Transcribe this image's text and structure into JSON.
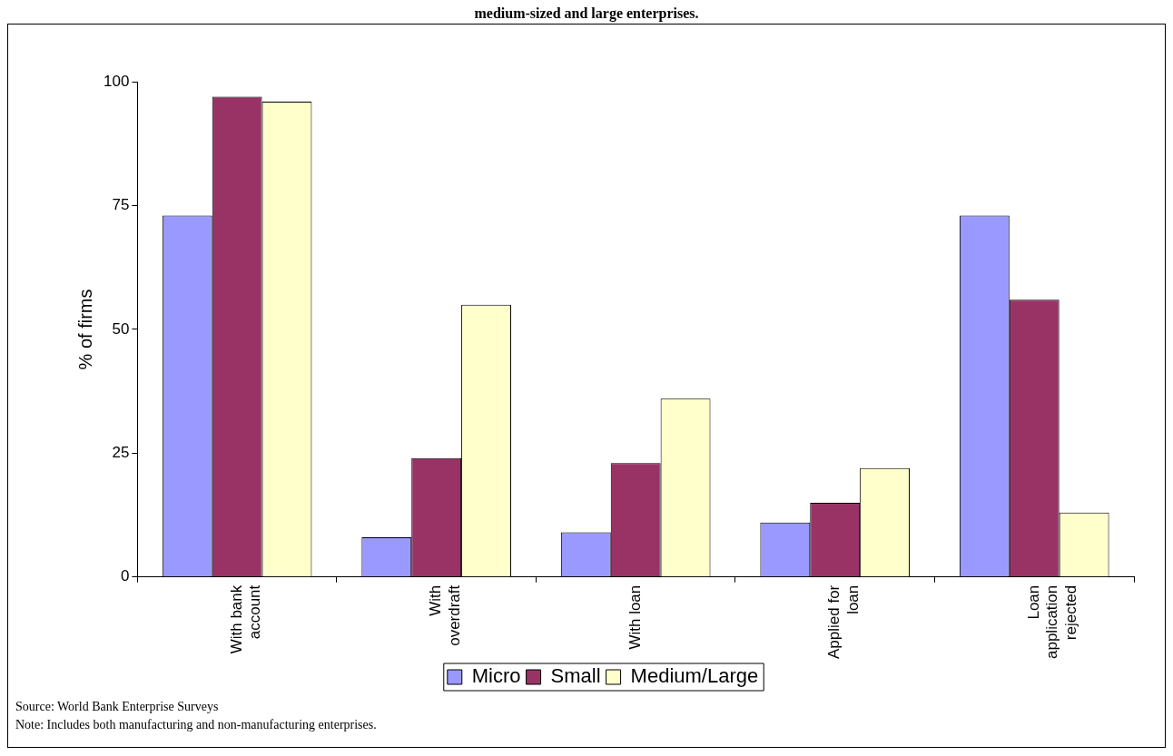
{
  "chart_data": {
    "type": "bar",
    "title": "medium-sized and large enterprises.",
    "ylabel": "% of firms",
    "categories": [
      "With bank account",
      "With overdraft",
      "With loan",
      "Applied for loan",
      "Loan application rejected"
    ],
    "series": [
      {
        "name": "Micro",
        "color": "#9999ff",
        "values": [
          73,
          8,
          9,
          11,
          73
        ]
      },
      {
        "name": "Small",
        "color": "#993366",
        "values": [
          97,
          24,
          23,
          15,
          56
        ]
      },
      {
        "name": "Medium/Large",
        "color": "#ffffcc",
        "values": [
          96,
          55,
          36,
          22,
          13
        ]
      }
    ],
    "ylim": [
      0,
      100
    ],
    "yticks": [
      0,
      25,
      50,
      75,
      100
    ],
    "grid": false,
    "legend": "bottom",
    "annotations": [
      "Source: World Bank Enterprise Surveys",
      "Note: Includes both manufacturing and non-manufacturing enterprises."
    ]
  }
}
